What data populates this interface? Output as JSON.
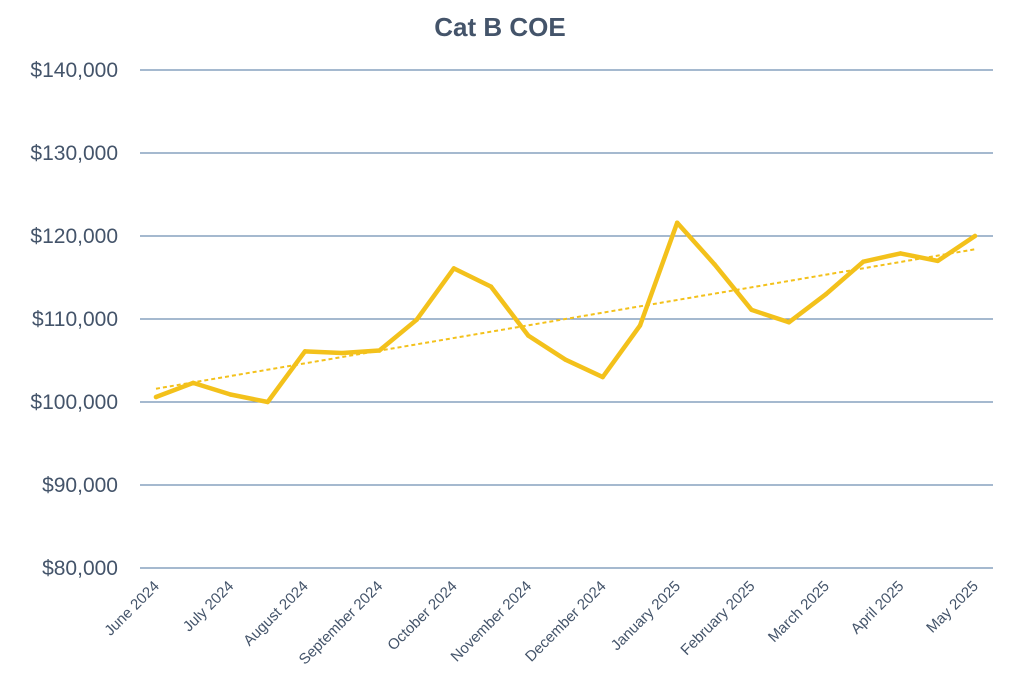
{
  "chart_data": {
    "type": "line",
    "title": "Cat B COE",
    "xlabel": "",
    "ylabel": "",
    "ylim": [
      80000,
      140000
    ],
    "yticks": [
      80000,
      90000,
      100000,
      110000,
      120000,
      130000,
      140000
    ],
    "ytick_labels": [
      "$80,000",
      "$90,000",
      "$100,000",
      "$110,000",
      "$120,000",
      "$130,000",
      "$140,000"
    ],
    "x_tick_labels": [
      "June 2024",
      "July 2024",
      "August 2024",
      "September 2024",
      "October 2024",
      "November 2024",
      "December 2024",
      "January 2025",
      "February 2025",
      "March 2025",
      "April 2025",
      "May 2025"
    ],
    "grid": true,
    "legend": "none",
    "colors": {
      "series": "#f3c11b",
      "grid": "#6f8fb2",
      "text": "#44546a"
    },
    "series": [
      {
        "name": "Cat B COE",
        "points_per_month": 2,
        "values": [
          100600,
          102300,
          100900,
          100000,
          106100,
          105900,
          106200,
          109900,
          116100,
          113900,
          108000,
          105100,
          103000,
          109200,
          121600,
          116600,
          111100,
          109600,
          113000,
          116900,
          117900,
          117000,
          120000
        ]
      }
    ],
    "trendline": {
      "name": "Linear trend",
      "style": "dashed",
      "start": 101600,
      "end": 118400
    }
  }
}
